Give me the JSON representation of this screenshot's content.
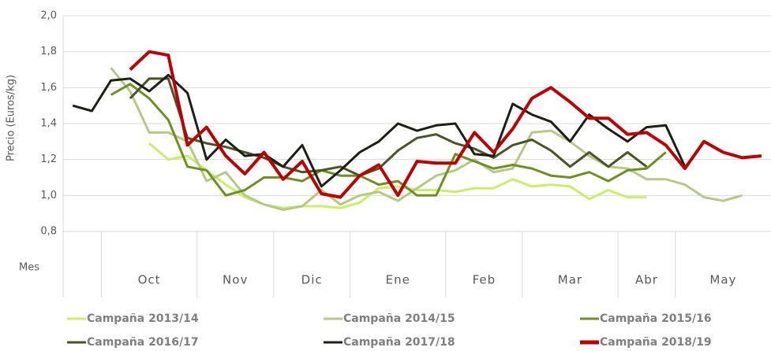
{
  "chart_data": {
    "type": "line",
    "y_label": "Precio (Euros/kg)",
    "x_row_label": "Mes",
    "categories": [
      null,
      null,
      null,
      null,
      null,
      null,
      null,
      null,
      null,
      null,
      null,
      null,
      null,
      null,
      null,
      null,
      null,
      null,
      null,
      null,
      null,
      null,
      null,
      null,
      null,
      null,
      null,
      null,
      null,
      null,
      null,
      null,
      null,
      null,
      null,
      null,
      null
    ],
    "x_groups": [
      {
        "label": null,
        "count": 2
      },
      {
        "label": "Oct",
        "count": 5
      },
      {
        "label": "Nov",
        "count": 4
      },
      {
        "label": "Dic",
        "count": 4
      },
      {
        "label": "Ene",
        "count": 5
      },
      {
        "label": "Feb",
        "count": 4
      },
      {
        "label": "Mar",
        "count": 5
      },
      {
        "label": "Abr",
        "count": 3
      },
      {
        "label": "May",
        "count": 5
      }
    ],
    "ylim": [
      0.8,
      2.0
    ],
    "yticks": [
      {
        "value": 0.8,
        "label": "0,8"
      },
      {
        "value": 1.0,
        "label": "1,0"
      },
      {
        "value": 1.2,
        "label": "1,2"
      },
      {
        "value": 1.4,
        "label": "1,4"
      },
      {
        "value": 1.6,
        "label": "1,6"
      },
      {
        "value": 1.8,
        "label": "1,8"
      },
      {
        "value": 2.0,
        "label": "2,0"
      }
    ],
    "grid": true,
    "legend": "bottom",
    "series": [
      {
        "name": "Campaña 2013/14",
        "color": "#ccee66",
        "values": [
          null,
          null,
          null,
          null,
          1.29,
          1.2,
          1.22,
          1.14,
          1.06,
          0.99,
          0.95,
          0.93,
          0.94,
          0.94,
          0.93,
          0.96,
          1.04,
          1.05,
          1.03,
          1.03,
          1.02,
          1.04,
          1.04,
          1.09,
          1.05,
          1.06,
          1.05,
          0.98,
          1.03,
          0.99,
          0.99,
          null,
          null,
          null,
          null,
          null,
          null
        ]
      },
      {
        "name": "Campaña 2014/15",
        "color": "#b5c983",
        "values": [
          null,
          null,
          1.71,
          1.58,
          1.35,
          1.35,
          1.3,
          1.08,
          1.13,
          1.0,
          0.95,
          0.92,
          0.94,
          1.03,
          0.95,
          1.0,
          1.02,
          0.97,
          1.04,
          1.11,
          1.14,
          1.2,
          1.13,
          1.15,
          1.35,
          1.36,
          1.3,
          1.22,
          1.16,
          1.15,
          1.09,
          1.09,
          1.06,
          0.99,
          0.97,
          1.0,
          null
        ]
      },
      {
        "name": "Campaña 2015/16",
        "color": "#6f8f1f",
        "values": [
          null,
          null,
          1.56,
          1.62,
          1.54,
          1.42,
          1.16,
          1.14,
          1.0,
          1.03,
          1.1,
          1.1,
          1.08,
          1.14,
          1.11,
          1.11,
          1.06,
          1.08,
          1.0,
          1.0,
          1.23,
          1.19,
          1.15,
          1.17,
          1.15,
          1.11,
          1.1,
          1.13,
          1.08,
          1.14,
          1.15,
          1.24,
          null,
          null,
          null,
          null,
          null
        ]
      },
      {
        "name": "Campaña 2016/17",
        "color": "#4a5424",
        "values": [
          null,
          null,
          null,
          1.54,
          1.65,
          1.65,
          1.32,
          1.29,
          1.27,
          1.24,
          1.21,
          1.16,
          1.13,
          1.14,
          1.16,
          1.11,
          1.15,
          1.25,
          1.32,
          1.34,
          1.29,
          1.26,
          1.21,
          1.28,
          1.31,
          1.25,
          1.16,
          1.24,
          1.16,
          1.24,
          1.16,
          null,
          null,
          null,
          null,
          null,
          null
        ]
      },
      {
        "name": "Campaña 2017/18",
        "color": "#1c1f14",
        "values": [
          1.5,
          1.47,
          1.64,
          1.65,
          1.58,
          1.67,
          1.57,
          1.2,
          1.31,
          1.22,
          1.23,
          1.16,
          1.28,
          1.05,
          1.14,
          1.24,
          1.3,
          1.4,
          1.36,
          1.39,
          1.4,
          1.23,
          1.22,
          1.51,
          1.45,
          1.41,
          1.3,
          1.45,
          1.37,
          1.3,
          1.38,
          1.39,
          1.16,
          null,
          null,
          null,
          null
        ]
      },
      {
        "name": "Campaña 2018/19",
        "color": "#c00000",
        "values": [
          null,
          null,
          null,
          1.7,
          1.8,
          1.78,
          1.28,
          1.38,
          1.22,
          1.12,
          1.24,
          1.09,
          1.19,
          1.01,
          0.99,
          1.11,
          1.17,
          1.0,
          1.19,
          1.18,
          1.18,
          1.35,
          1.24,
          1.37,
          1.54,
          1.6,
          1.52,
          1.43,
          1.43,
          1.34,
          1.35,
          1.28,
          1.15,
          1.3,
          1.24,
          1.21,
          1.22
        ]
      }
    ]
  }
}
